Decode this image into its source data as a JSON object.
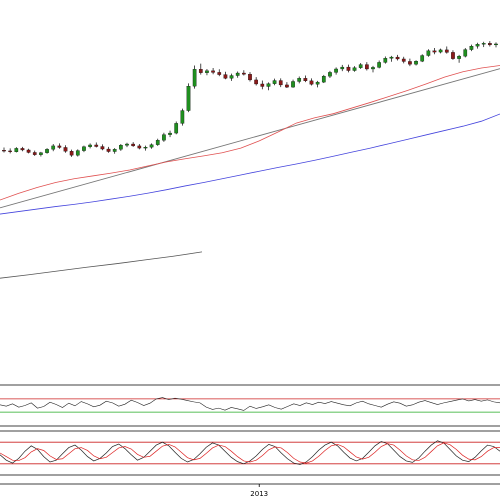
{
  "colors": {
    "up": "#1f8f1f",
    "down": "#8b1a1a",
    "wick": "#000000",
    "ma_short": "#e05050",
    "ma_long": "#4444dd",
    "trend": "#777777",
    "volume_line": "#555555",
    "osc_line": "#222222",
    "stoch_k": "#222222",
    "stoch_d": "#dd2222",
    "osc_upper": "#cc2222",
    "osc_lower": "#22aa22",
    "frame": "#000000"
  },
  "chart_data": [
    {
      "type": "candlestick",
      "title": "",
      "xlabel": "",
      "ylabel": "",
      "grid": false,
      "legend": "none",
      "ylim": [
        0,
        100
      ],
      "series": [
        {
          "kind": "ohlc",
          "ohlc": [
            [
              70.9,
              71.8,
              70.2,
              70.7
            ],
            [
              70.7,
              71.5,
              69.9,
              70.4
            ],
            [
              70.4,
              71.9,
              70.2,
              71.5
            ],
            [
              71.5,
              72.0,
              70.6,
              71.0
            ],
            [
              71.0,
              71.4,
              69.9,
              70.2
            ],
            [
              70.2,
              70.8,
              69.1,
              69.5
            ],
            [
              69.5,
              70.4,
              68.9,
              70.1
            ],
            [
              70.1,
              71.6,
              69.8,
              71.2
            ],
            [
              71.2,
              72.9,
              70.6,
              72.3
            ],
            [
              72.3,
              73.1,
              71.4,
              71.8
            ],
            [
              71.8,
              72.5,
              70.1,
              70.6
            ],
            [
              70.6,
              71.1,
              68.8,
              69.3
            ],
            [
              69.3,
              71.2,
              68.9,
              70.8
            ],
            [
              70.8,
              72.4,
              70.3,
              72.0
            ],
            [
              72.0,
              73.1,
              71.5,
              72.6
            ],
            [
              72.6,
              73.4,
              71.8,
              72.1
            ],
            [
              72.1,
              72.8,
              70.9,
              71.3
            ],
            [
              71.3,
              72.0,
              70.1,
              70.5
            ],
            [
              70.5,
              71.6,
              69.8,
              71.2
            ],
            [
              71.2,
              72.9,
              70.7,
              72.5
            ],
            [
              72.5,
              73.3,
              71.9,
              72.9
            ],
            [
              72.9,
              73.5,
              72.0,
              72.3
            ],
            [
              72.3,
              72.9,
              71.2,
              71.6
            ],
            [
              71.6,
              72.4,
              70.8,
              71.9
            ],
            [
              71.9,
              73.1,
              71.4,
              72.7
            ],
            [
              72.7,
              74.6,
              72.3,
              74.1
            ],
            [
              74.1,
              76.5,
              73.6,
              75.9
            ],
            [
              75.9,
              77.2,
              75.1,
              76.4
            ],
            [
              76.4,
              80.1,
              76.0,
              79.5
            ],
            [
              79.5,
              84.2,
              78.8,
              83.6
            ],
            [
              83.6,
              92.3,
              83.1,
              91.4
            ],
            [
              91.4,
              98.0,
              90.6,
              96.8
            ],
            [
              96.8,
              98.6,
              95.1,
              95.7
            ],
            [
              95.7,
              96.9,
              94.9,
              96.3
            ],
            [
              96.3,
              97.2,
              95.2,
              95.8
            ],
            [
              95.8,
              96.8,
              94.6,
              95.1
            ],
            [
              95.1,
              96.0,
              93.6,
              93.9
            ],
            [
              93.9,
              95.4,
              93.1,
              94.8
            ],
            [
              94.8,
              96.1,
              94.1,
              95.6
            ],
            [
              95.6,
              96.5,
              94.8,
              95.2
            ],
            [
              95.2,
              95.9,
              92.9,
              93.4
            ],
            [
              93.4,
              94.3,
              91.6,
              92.1
            ],
            [
              92.1,
              93.2,
              90.4,
              91.3
            ],
            [
              91.3,
              92.6,
              90.1,
              92.2
            ],
            [
              92.2,
              93.8,
              91.7,
              93.2
            ],
            [
              93.2,
              93.9,
              91.1,
              91.8
            ],
            [
              91.8,
              92.7,
              90.8,
              91.1
            ],
            [
              91.1,
              93.5,
              90.9,
              92.9
            ],
            [
              92.9,
              94.5,
              92.3,
              93.9
            ],
            [
              93.9,
              94.8,
              92.7,
              93.1
            ],
            [
              93.1,
              93.9,
              91.6,
              92.0
            ],
            [
              92.0,
              93.1,
              91.0,
              92.7
            ],
            [
              92.7,
              95.0,
              92.4,
              94.6
            ],
            [
              94.6,
              96.3,
              94.0,
              95.8
            ],
            [
              95.8,
              97.4,
              95.1,
              96.9
            ],
            [
              96.9,
              98.2,
              96.2,
              97.5
            ],
            [
              97.5,
              98.3,
              95.8,
              96.4
            ],
            [
              96.4,
              97.8,
              96.0,
              97.3
            ],
            [
              97.3,
              98.8,
              96.9,
              98.3
            ],
            [
              98.3,
              99.1,
              96.4,
              96.9
            ],
            [
              96.9,
              97.9,
              95.8,
              97.4
            ],
            [
              97.4,
              99.6,
              97.1,
              99.0
            ],
            [
              99.0,
              100.9,
              98.6,
              100.3
            ],
            [
              100.3,
              101.1,
              99.2,
              100.7
            ],
            [
              100.7,
              101.4,
              99.6,
              100.1
            ],
            [
              100.1,
              100.8,
              98.7,
              99.3
            ],
            [
              99.3,
              100.2,
              97.8,
              98.4
            ],
            [
              98.4,
              99.7,
              98.0,
              99.4
            ],
            [
              99.4,
              101.6,
              99.1,
              101.2
            ],
            [
              101.2,
              103.2,
              100.8,
              102.7
            ],
            [
              102.7,
              103.6,
              101.6,
              102.3
            ],
            [
              102.3,
              103.4,
              101.9,
              103.0
            ],
            [
              103.0,
              104.1,
              101.8,
              102.2
            ],
            [
              102.2,
              102.9,
              99.8,
              100.2
            ],
            [
              100.2,
              101.4,
              98.9,
              101.0
            ],
            [
              101.0,
              103.6,
              100.6,
              103.1
            ],
            [
              103.1,
              104.7,
              102.6,
              104.2
            ],
            [
              104.2,
              105.3,
              103.4,
              104.8
            ],
            [
              104.8,
              105.6,
              103.9,
              105.1
            ],
            [
              105.1,
              105.8,
              104.1,
              104.6
            ],
            [
              104.6,
              105.4,
              103.8,
              104.9
            ]
          ]
        },
        {
          "name": "",
          "kind": "ma",
          "values": [
            55.0,
            57.1,
            59.0,
            60.6,
            61.8,
            62.7,
            63.6,
            64.6,
            65.9,
            67.2,
            68.2,
            69.1,
            70.1,
            71.6,
            73.9,
            76.7,
            79.6,
            81.3,
            82.6,
            84.4,
            86.2,
            88.1,
            90.0,
            92.1,
            94.3,
            96.0,
            97.2,
            98.0
          ]
        },
        {
          "name": "",
          "kind": "ma",
          "values": [
            50.5,
            51.3,
            52.1,
            52.9,
            53.6,
            54.4,
            55.3,
            56.2,
            57.2,
            58.3,
            59.5,
            60.6,
            61.8,
            63.0,
            64.2,
            65.4,
            66.5,
            67.7,
            69.0,
            70.3,
            71.6,
            73.0,
            74.4,
            75.8,
            77.2,
            78.6,
            80.2,
            82.5
          ]
        },
        {
          "name": "",
          "kind": "trend",
          "values": [
            52.5,
            97.0
          ]
        },
        {
          "name": "",
          "kind": "line",
          "values": [
            30.0,
            31.1,
            32.3,
            33.5,
            34.6,
            35.8,
            37.0,
            38.4
          ]
        }
      ]
    },
    {
      "type": "line",
      "title": "",
      "ylim": [
        0,
        100
      ],
      "upper_level": 70,
      "lower_level": 30,
      "series": [
        {
          "name": "",
          "values": [
            52,
            48,
            55,
            45,
            50,
            58,
            42,
            47,
            60,
            53,
            44,
            57,
            49,
            62,
            55,
            46,
            51,
            63,
            58,
            48,
            54,
            66,
            59,
            50,
            57,
            70,
            74,
            68,
            72,
            69,
            65,
            61,
            58,
            45,
            38,
            42,
            36,
            44,
            40,
            35,
            48,
            41,
            46,
            52,
            44,
            39,
            47,
            55,
            50,
            58,
            53,
            60,
            56,
            62,
            57,
            52,
            49,
            58,
            63,
            55,
            50,
            45,
            54,
            61,
            57,
            48,
            52,
            60,
            65,
            59,
            53,
            58,
            62,
            66,
            70,
            64,
            68,
            63,
            67,
            61,
            58
          ]
        }
      ]
    },
    {
      "type": "line",
      "title": "",
      "ylim": [
        0,
        100
      ],
      "upper_level": 80,
      "lower_level": 20,
      "series": [
        {
          "name": "",
          "values": [
            45,
            30,
            22,
            35,
            55,
            70,
            60,
            40,
            25,
            30,
            48,
            65,
            72,
            58,
            40,
            28,
            35,
            50,
            68,
            75,
            62,
            45,
            30,
            38,
            55,
            72,
            80,
            70,
            52,
            35,
            25,
            32,
            48,
            66,
            78,
            72,
            55,
            38,
            26,
            20,
            28,
            42,
            60,
            74,
            68,
            50,
            34,
            22,
            18,
            25,
            40,
            58,
            72,
            80,
            70,
            52,
            36,
            28,
            35,
            52,
            70,
            82,
            76,
            58,
            40,
            28,
            24,
            36,
            55,
            72,
            84,
            78,
            60,
            42,
            30,
            26,
            38,
            56,
            72,
            68,
            55
          ]
        },
        {
          "name": "",
          "values": [
            50,
            40,
            30,
            29,
            37,
            53,
            62,
            57,
            42,
            32,
            34,
            48,
            62,
            65,
            57,
            42,
            34,
            38,
            51,
            64,
            68,
            61,
            46,
            38,
            41,
            55,
            69,
            74,
            67,
            52,
            37,
            31,
            35,
            49,
            64,
            72,
            68,
            55,
            40,
            28,
            25,
            30,
            43,
            59,
            67,
            64,
            51,
            35,
            25,
            22,
            28,
            41,
            57,
            70,
            74,
            67,
            53,
            39,
            33,
            38,
            52,
            68,
            76,
            72,
            58,
            42,
            31,
            29,
            38,
            54,
            70,
            78,
            73,
            60,
            44,
            33,
            31,
            40,
            55,
            65,
            65
          ]
        }
      ]
    }
  ],
  "axis": {
    "x_labels": [
      {
        "index": 41,
        "label": "2013"
      }
    ]
  }
}
